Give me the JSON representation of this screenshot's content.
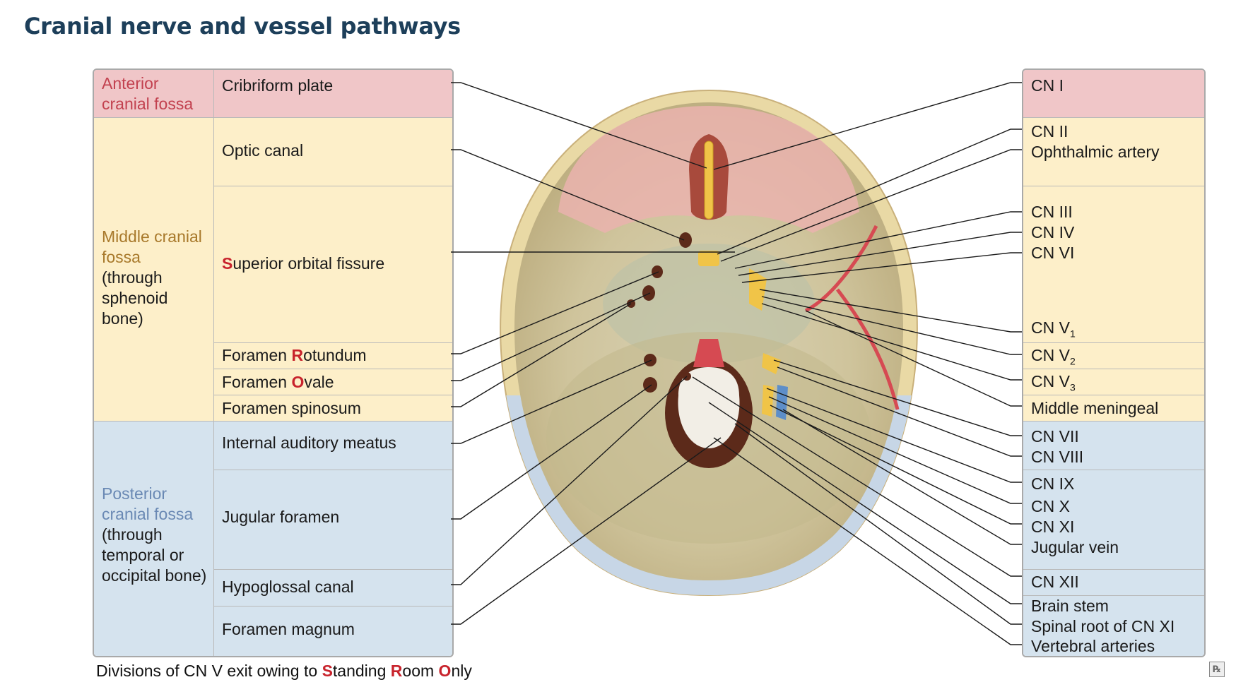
{
  "title": "Cranial nerve and vessel pathways",
  "regions": {
    "anterior": {
      "name": "Anterior cranial fossa",
      "sub": ""
    },
    "middle": {
      "name": "Middle cranial fossa",
      "sub": "(through sphenoid bone)"
    },
    "posterior": {
      "name": "Posterior cranial fossa",
      "sub": "(through temporal or occipital bone)"
    }
  },
  "structures": [
    {
      "label": "Cribriform plate",
      "hl": "",
      "rest": ""
    },
    {
      "label": "Optic canal",
      "hl": "",
      "rest": ""
    },
    {
      "label": "",
      "hl": "S",
      "rest": "uperior orbital fissure"
    },
    {
      "label": "Foramen ",
      "hl": "R",
      "rest": "otundum"
    },
    {
      "label": "Foramen ",
      "hl": "O",
      "rest": "vale"
    },
    {
      "label": "Foramen spinosum",
      "hl": "",
      "rest": ""
    },
    {
      "label": "Internal auditory meatus",
      "hl": "",
      "rest": ""
    },
    {
      "label": "Jugular foramen",
      "hl": "",
      "rest": ""
    },
    {
      "label": "Hypoglossal canal",
      "hl": "",
      "rest": ""
    },
    {
      "label": "Foramen magnum",
      "hl": "",
      "rest": ""
    }
  ],
  "contents": [
    [
      "CN I"
    ],
    [
      "CN II",
      "Ophthalmic artery"
    ],
    [
      "CN III",
      "CN IV",
      "CN VI"
    ],
    [
      "CN V",
      "1"
    ],
    [
      "CN V",
      "2"
    ],
    [
      "CN V",
      "3"
    ],
    [
      "Middle meningeal artery"
    ],
    [
      "CN VII",
      "CN VIII"
    ],
    [
      "CN IX",
      "CN X",
      "CN XI",
      "Jugular vein"
    ],
    [
      "CN XII"
    ],
    [
      "Brain stem",
      "Spinal root of CN XI",
      "Vertebral arteries"
    ]
  ],
  "footnote": {
    "a": "Divisions of CN V exit owing to ",
    "s": "S",
    "b": "tanding ",
    "r": "R",
    "c": "oom ",
    "o": "O",
    "d": "nly"
  },
  "colors": {
    "anterior": "#f0c6c8",
    "middle": "#fdefc9",
    "posterior": "#d5e3ee",
    "highlight": "#c8232c",
    "title": "#1d3f5a"
  }
}
